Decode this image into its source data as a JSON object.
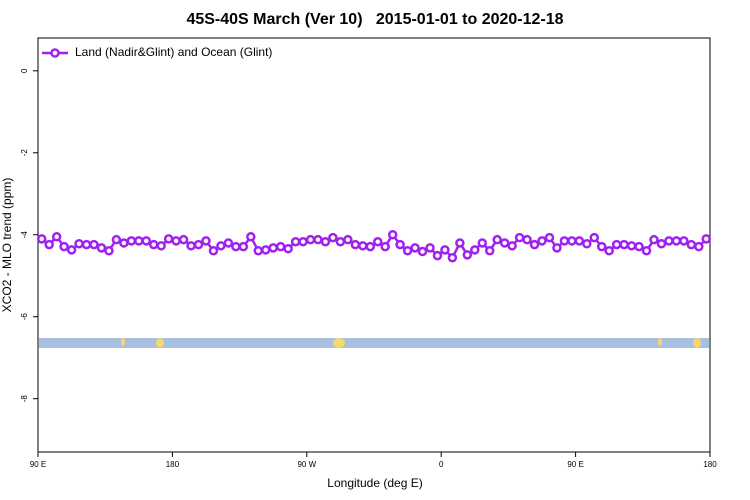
{
  "chart_data": {
    "type": "line",
    "title": "45S-40S March (Ver 10)   2015-01-01 to 2020-12-18",
    "x_label": "Longitude (deg E)",
    "y_label": "XCO2 - MLO trend (ppm)",
    "xlim": [
      90,
      540
    ],
    "ylim": [
      -9.3,
      0.8
    ],
    "xticks": [
      {
        "value": 90,
        "label": "90 E"
      },
      180,
      {
        "value": 270,
        "label": "90 W"
      },
      {
        "value": 360,
        "label": "0"
      },
      {
        "value": 450,
        "label": "90 E"
      },
      {
        "value": 540,
        "label": "180"
      }
    ],
    "yticks": [
      0,
      -2,
      -4,
      -6,
      -8
    ],
    "legend": "top-left",
    "x": [
      92.5,
      97.5,
      102.5,
      107.5,
      112.5,
      117.5,
      122.5,
      127.5,
      132.5,
      137.5,
      142.5,
      147.5,
      152.5,
      157.5,
      162.5,
      167.5,
      172.5,
      177.5,
      182.5,
      187.5,
      192.5,
      197.5,
      202.5,
      207.5,
      212.5,
      217.5,
      222.5,
      227.5,
      232.5,
      237.5,
      242.5,
      247.5,
      252.5,
      257.5,
      262.5,
      267.5,
      272.5,
      277.5,
      282.5,
      287.5,
      292.5,
      297.5,
      302.5,
      307.5,
      312.5,
      317.5,
      322.5,
      327.5,
      332.5,
      337.5,
      342.5,
      347.5,
      352.5,
      357.5,
      362.5,
      367.5,
      372.5,
      377.5,
      382.5,
      387.5,
      392.5,
      397.5,
      402.5,
      407.5,
      412.5,
      417.5,
      422.5,
      427.5,
      432.5,
      437.5,
      442.5,
      447.5,
      452.5,
      457.5,
      462.5,
      467.5,
      472.5,
      477.5,
      482.5,
      487.5,
      492.5,
      497.5,
      502.5,
      507.5,
      512.5,
      517.5,
      522.5,
      527.5,
      532.5,
      537.5
    ],
    "series": [
      {
        "name": "Land (Nadir&Glint) and Ocean (Glint)",
        "color": "#a020f0",
        "values": [
          -4.1,
          -4.24,
          -4.05,
          -4.29,
          -4.37,
          -4.22,
          -4.24,
          -4.24,
          -4.32,
          -4.39,
          -4.12,
          -4.2,
          -4.15,
          -4.15,
          -4.15,
          -4.24,
          -4.27,
          -4.1,
          -4.15,
          -4.12,
          -4.27,
          -4.24,
          -4.15,
          -4.39,
          -4.27,
          -4.2,
          -4.29,
          -4.29,
          -4.05,
          -4.39,
          -4.37,
          -4.32,
          -4.29,
          -4.34,
          -4.17,
          -4.17,
          -4.12,
          -4.12,
          -4.17,
          -4.07,
          -4.17,
          -4.12,
          -4.24,
          -4.27,
          -4.29,
          -4.17,
          -4.29,
          -4.0,
          -4.24,
          -4.39,
          -4.32,
          -4.41,
          -4.32,
          -4.51,
          -4.37,
          -4.56,
          -4.2,
          -4.49,
          -4.37,
          -4.2,
          -4.39,
          -4.12,
          -4.2,
          -4.27,
          -4.07,
          -4.12,
          -4.24,
          -4.15,
          -4.07,
          -4.32,
          -4.15,
          -4.15,
          -4.15,
          -4.22,
          -4.07,
          -4.29,
          -4.39,
          -4.24,
          -4.24,
          -4.27,
          -4.29,
          -4.39,
          -4.12,
          -4.22,
          -4.15,
          -4.15,
          -4.15,
          -4.24,
          -4.29,
          -4.1
        ]
      }
    ]
  }
}
